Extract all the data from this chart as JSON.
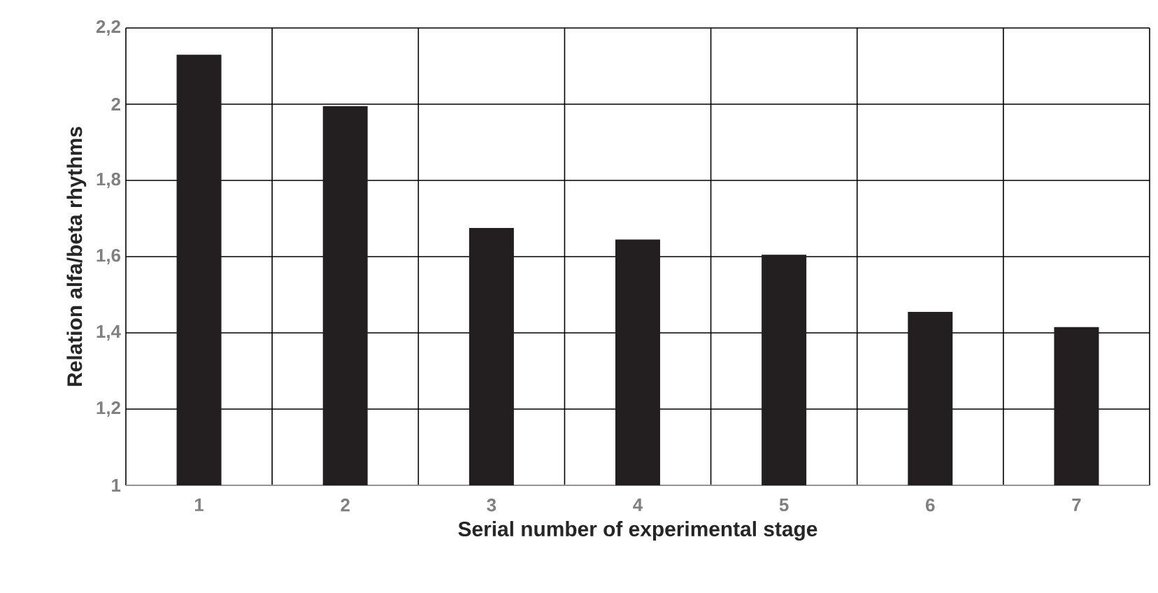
{
  "chart_data": {
    "type": "bar",
    "xlabel": "Serial number of experimental stage",
    "ylabel": "Relation alfa/beta rhythms",
    "categories": [
      "1",
      "2",
      "3",
      "4",
      "5",
      "6",
      "7"
    ],
    "values": [
      2.13,
      1.995,
      1.675,
      1.645,
      1.605,
      1.455,
      1.415
    ],
    "color": "#231f20",
    "ylim": [
      1,
      2.2
    ],
    "yticks": [
      1,
      {
        "value": 1.2,
        "label": "1,2"
      },
      {
        "value": 1.4,
        "label": "1,4"
      },
      {
        "value": 1.6,
        "label": "1,6"
      },
      {
        "value": 1.8,
        "label": "1,8"
      },
      2,
      {
        "value": 2.2,
        "label": "2,2"
      }
    ],
    "grid": true
  }
}
